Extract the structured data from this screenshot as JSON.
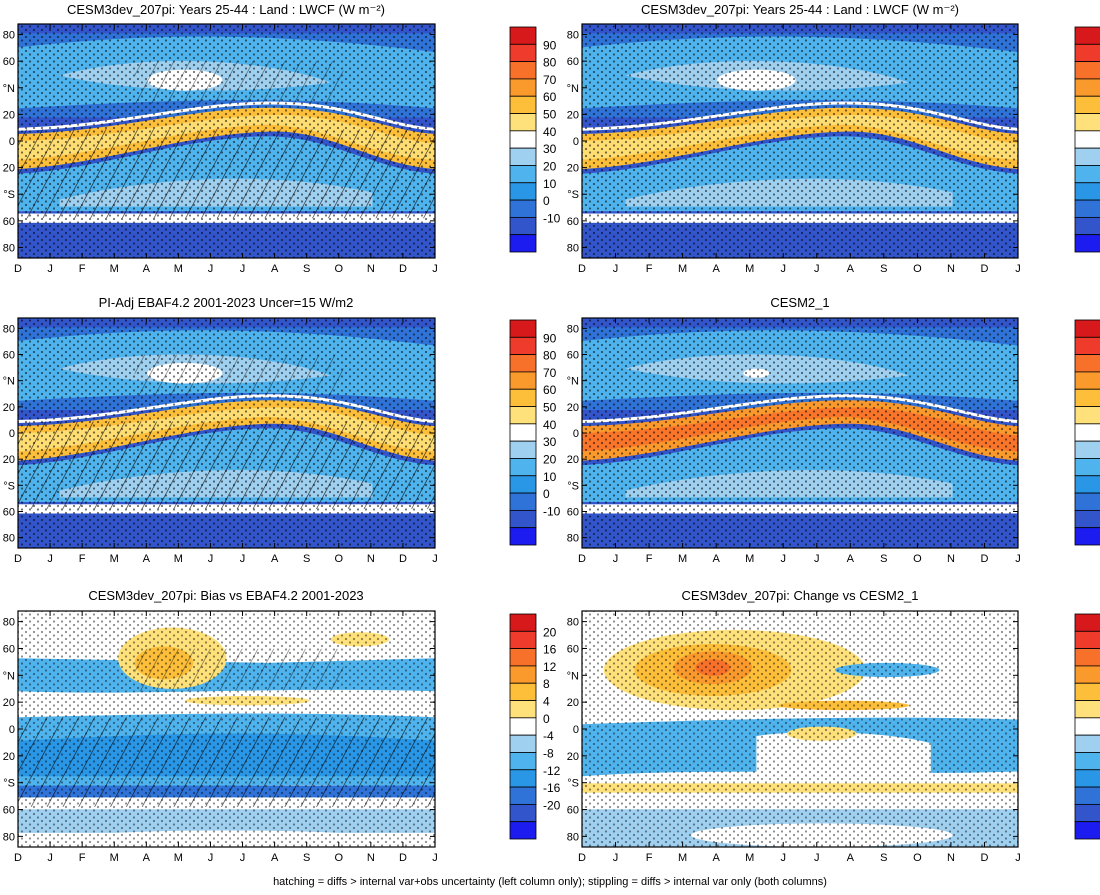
{
  "footnote": "hatching = diffs > internal var+obs uncertainty (left column only); stippling = diffs > internal var only (both columns)",
  "axes": {
    "x_ticks": [
      "D",
      "J",
      "F",
      "M",
      "A",
      "M",
      "J",
      "J",
      "A",
      "S",
      "O",
      "N",
      "D",
      "J"
    ],
    "y_ticks": [
      "80",
      "60",
      "°N",
      "20",
      "0",
      "20",
      "°S",
      "60",
      "80"
    ]
  },
  "colorbars": {
    "abs": {
      "labels": [
        "90",
        "80",
        "70",
        "60",
        "50",
        "40",
        "30",
        "20",
        "10",
        "0",
        "-10"
      ],
      "colors": [
        "#d7191c",
        "#ee3b2c",
        "#f8712a",
        "#fb9a2c",
        "#fdbf3a",
        "#fee17a",
        "#ffffff",
        "#9fd0f0",
        "#4fb4ee",
        "#2996e6",
        "#2f73d8",
        "#3355cc",
        "#1c1cf0"
      ]
    },
    "diff": {
      "labels": [
        "20",
        "16",
        "12",
        "8",
        "4",
        "0",
        "-4",
        "-8",
        "-12",
        "-16",
        "-20"
      ],
      "colors": [
        "#d7191c",
        "#ee3b2c",
        "#f8712a",
        "#fb9a2c",
        "#fdbf3a",
        "#fee17a",
        "#ffffff",
        "#9fd0f0",
        "#4fb4ee",
        "#2996e6",
        "#2f73d8",
        "#3355cc",
        "#1c1cf0"
      ]
    }
  },
  "chart_data": [
    {
      "type": "heatmap",
      "title": "CESM3dev_207pi: Years 25-44 : Land : LWCF (W m⁻²)",
      "kind": "abs",
      "hatch": "heavy",
      "stipple": "dense",
      "x": [
        "D",
        "J",
        "F",
        "M",
        "A",
        "M",
        "J",
        "J",
        "A",
        "S",
        "O",
        "N",
        "D",
        "J"
      ],
      "y": [
        "80",
        "60",
        "°N",
        "20",
        "0",
        "20",
        "°S",
        "60",
        "80"
      ],
      "clim": [
        -10,
        90
      ]
    },
    {
      "type": "heatmap",
      "title": "CESM3dev_207pi: Years 25-44 : Land : LWCF (W m⁻²)",
      "kind": "abs",
      "hatch": "none",
      "stipple": "dense",
      "x": [
        "D",
        "J",
        "F",
        "M",
        "A",
        "M",
        "J",
        "J",
        "A",
        "S",
        "O",
        "N",
        "D",
        "J"
      ],
      "y": [
        "80",
        "60",
        "°N",
        "20",
        "0",
        "20",
        "°S",
        "60",
        "80"
      ],
      "clim": [
        -10,
        90
      ]
    },
    {
      "type": "heatmap",
      "title": "PI-Adj EBAF4.2 2001-2023 Uncer=15 W/m2",
      "kind": "abs",
      "hatch": "heavy",
      "stipple": "dense",
      "x": [
        "D",
        "J",
        "F",
        "M",
        "A",
        "M",
        "J",
        "J",
        "A",
        "S",
        "O",
        "N",
        "D",
        "J"
      ],
      "y": [
        "80",
        "60",
        "°N",
        "20",
        "0",
        "20",
        "°S",
        "60",
        "80"
      ],
      "clim": [
        -10,
        90
      ]
    },
    {
      "type": "heatmap",
      "title": "CESM2_1",
      "kind": "abs",
      "hatch": "none",
      "stipple": "dense",
      "x": [
        "D",
        "J",
        "F",
        "M",
        "A",
        "M",
        "J",
        "J",
        "A",
        "S",
        "O",
        "N",
        "D",
        "J"
      ],
      "y": [
        "80",
        "60",
        "°N",
        "20",
        "0",
        "20",
        "°S",
        "60",
        "80"
      ],
      "clim": [
        -10,
        90
      ]
    },
    {
      "type": "heatmap",
      "title": "CESM3dev_207pi: Bias vs EBAF4.2 2001-2023",
      "kind": "diff_bias",
      "hatch": "heavy",
      "stipple": "dense",
      "x": [
        "D",
        "J",
        "F",
        "M",
        "A",
        "M",
        "J",
        "J",
        "A",
        "S",
        "O",
        "N",
        "D",
        "J"
      ],
      "y": [
        "80",
        "60",
        "°N",
        "20",
        "0",
        "20",
        "°S",
        "60",
        "80"
      ],
      "clim": [
        -20,
        20
      ]
    },
    {
      "type": "heatmap",
      "title": "CESM3dev_207pi: Change vs CESM2_1",
      "kind": "diff_change",
      "hatch": "none",
      "stipple": "dense",
      "x": [
        "D",
        "J",
        "F",
        "M",
        "A",
        "M",
        "J",
        "J",
        "A",
        "S",
        "O",
        "N",
        "D",
        "J"
      ],
      "y": [
        "80",
        "60",
        "°N",
        "20",
        "0",
        "20",
        "°S",
        "60",
        "80"
      ],
      "clim": [
        -20,
        20
      ]
    }
  ]
}
